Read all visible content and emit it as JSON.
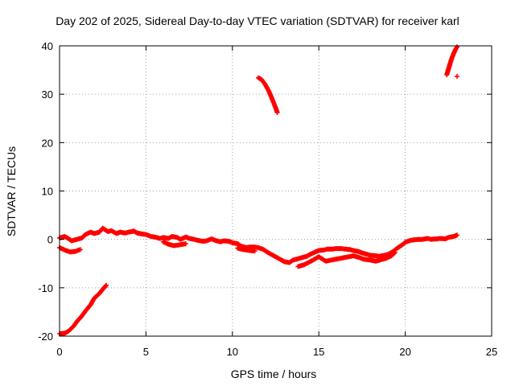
{
  "chart_data": {
    "type": "scatter",
    "title": "Day 202 of 2025, Sidereal Day-to-day VTEC variation (SDTVAR) for receiver karl",
    "xlabel": "GPS time / hours",
    "ylabel": "SDTVAR / TECUs",
    "xlim": [
      0,
      25
    ],
    "ylim": [
      -20,
      40
    ],
    "xticks": [
      0,
      5,
      10,
      15,
      20,
      25
    ],
    "yticks": [
      -20,
      -10,
      0,
      10,
      20,
      30,
      40
    ],
    "grid": true,
    "marker": "+",
    "color": "#ff0000",
    "series": [
      {
        "name": "rising-low",
        "x": [
          0.0,
          0.3,
          0.5,
          0.8,
          1.0,
          1.3,
          1.5,
          1.8,
          2.0,
          2.3,
          2.5,
          2.7
        ],
        "y": [
          -19.5,
          -19.4,
          -19.0,
          -18.0,
          -17.0,
          -15.8,
          -14.8,
          -13.5,
          -12.2,
          -11.2,
          -10.3,
          -9.5
        ]
      },
      {
        "name": "mid-arc",
        "x": [
          11.5,
          11.7,
          11.9,
          12.1,
          12.3,
          12.5,
          12.6
        ],
        "y": [
          33.4,
          33.0,
          32.0,
          30.7,
          29.0,
          27.2,
          26.2
        ]
      },
      {
        "name": "late-arc",
        "x": [
          22.4,
          22.5,
          22.6,
          22.7,
          22.8,
          22.9,
          23.0
        ],
        "y": [
          34.0,
          35.2,
          36.4,
          37.5,
          38.4,
          39.2,
          39.8
        ]
      },
      {
        "name": "late-arc-end",
        "x": [
          23.0
        ],
        "y": [
          33.7
        ]
      },
      {
        "name": "main-band",
        "x": [
          0.0,
          0.3,
          0.5,
          0.7,
          1.0,
          1.3,
          1.5,
          1.8,
          2.0,
          2.3,
          2.5,
          2.8,
          3.0,
          3.3,
          3.5,
          3.8,
          4.0,
          4.3,
          4.5,
          4.8,
          5.0,
          5.3,
          5.5,
          5.8,
          6.0,
          6.3,
          6.5,
          6.8,
          7.0,
          7.3,
          7.5,
          7.8,
          8.0,
          8.3,
          8.5,
          8.8,
          9.0,
          9.3,
          9.5,
          9.8,
          10.0,
          10.3,
          10.5,
          10.8,
          11.0,
          11.3,
          11.5,
          11.8,
          12.0,
          12.3,
          12.5,
          12.8,
          13.0,
          13.3,
          13.5,
          13.8,
          14.0,
          14.3,
          14.5,
          14.8,
          15.0,
          15.3,
          15.5,
          15.8,
          16.0,
          16.3,
          16.5,
          16.8,
          17.0,
          17.3,
          17.5,
          17.8,
          18.0,
          18.3,
          18.5,
          18.8,
          19.0,
          19.3,
          19.5,
          19.8,
          20.0,
          20.3,
          20.5,
          20.8,
          21.0,
          21.3,
          21.5,
          21.8,
          22.0,
          22.3,
          22.5,
          22.8,
          23.0
        ],
        "y": [
          0.3,
          0.6,
          0.2,
          -0.3,
          0.0,
          0.3,
          1.0,
          1.5,
          1.2,
          1.5,
          2.3,
          1.6,
          1.8,
          1.2,
          1.5,
          1.3,
          1.5,
          1.7,
          1.3,
          1.1,
          1.0,
          0.6,
          0.5,
          0.2,
          0.4,
          0.2,
          0.6,
          0.4,
          0.0,
          0.5,
          0.2,
          0.0,
          -0.2,
          -0.4,
          -0.3,
          0.1,
          -0.2,
          -0.5,
          -0.3,
          -0.4,
          -0.7,
          -0.9,
          -1.4,
          -1.7,
          -1.6,
          -1.6,
          -1.7,
          -2.1,
          -2.6,
          -3.2,
          -3.6,
          -4.2,
          -4.6,
          -4.8,
          -4.3,
          -4.0,
          -3.8,
          -3.5,
          -3.1,
          -2.6,
          -2.3,
          -2.2,
          -2.0,
          -2.0,
          -1.9,
          -1.9,
          -2.0,
          -2.1,
          -2.3,
          -2.5,
          -2.8,
          -3.1,
          -3.3,
          -3.4,
          -3.5,
          -3.3,
          -3.1,
          -2.5,
          -1.9,
          -1.2,
          -0.6,
          -0.2,
          -0.1,
          0.0,
          0.0,
          0.2,
          0.0,
          0.1,
          0.2,
          0.1,
          0.4,
          0.6,
          0.9
        ]
      },
      {
        "name": "lower-band",
        "x": [
          0.0,
          0.3,
          0.6,
          0.9,
          1.2,
          6.0,
          6.3,
          6.6,
          7.0,
          7.3,
          10.3,
          10.6,
          11.0,
          11.3,
          13.8,
          14.1,
          14.4,
          14.7,
          15.0,
          15.4,
          17.0,
          17.3,
          17.6,
          18.0,
          18.3,
          18.6,
          18.9,
          19.2,
          19.4
        ],
        "y": [
          -1.7,
          -2.2,
          -2.6,
          -2.5,
          -2.1,
          -0.5,
          -1.0,
          -1.3,
          -1.1,
          -0.9,
          -1.8,
          -2.1,
          -2.3,
          -2.4,
          -5.6,
          -5.3,
          -4.8,
          -4.2,
          -3.6,
          -4.5,
          -3.4,
          -3.7,
          -4.1,
          -4.3,
          -4.5,
          -4.2,
          -3.9,
          -3.4,
          -2.7
        ]
      }
    ]
  }
}
